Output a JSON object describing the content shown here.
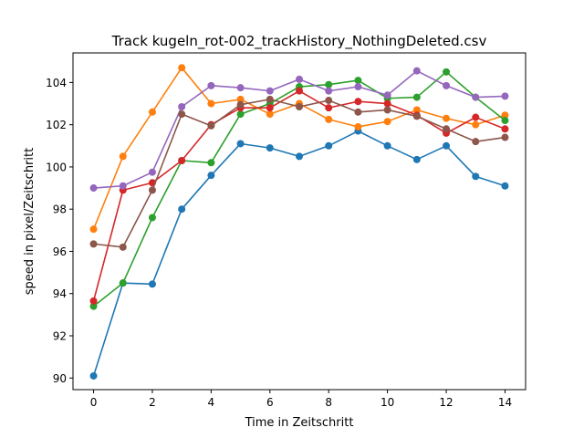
{
  "chart_data": {
    "type": "line",
    "title": "Track kugeln_rot-002_trackHistory_NothingDeleted.csv",
    "xlabel": "Time in Zeitschritt",
    "ylabel": "speed in pixel/Zeitschritt",
    "xlim": [
      -0.7,
      14.7
    ],
    "ylim": [
      89.45,
      105.4
    ],
    "xticks": [
      0,
      2,
      4,
      6,
      8,
      10,
      12,
      14
    ],
    "yticks": [
      90,
      92,
      94,
      96,
      98,
      100,
      102,
      104
    ],
    "grid": false,
    "legend": "none",
    "x": [
      0,
      1,
      2,
      3,
      4,
      5,
      6,
      7,
      8,
      9,
      10,
      11,
      12,
      13,
      14
    ],
    "series": [
      {
        "color": "#1f77b4",
        "values": [
          90.1,
          94.5,
          94.45,
          98.0,
          99.6,
          101.1,
          100.9,
          100.5,
          101.0,
          101.7,
          101.0,
          100.35,
          101.0,
          99.55,
          99.1
        ]
      },
      {
        "color": "#ff7f0e",
        "values": [
          97.05,
          100.5,
          102.6,
          104.7,
          103.0,
          103.2,
          102.5,
          103.0,
          102.25,
          101.9,
          102.15,
          102.7,
          102.3,
          102.0,
          102.45
        ]
      },
      {
        "color": "#2ca02c",
        "values": [
          93.4,
          94.5,
          97.6,
          100.3,
          100.2,
          102.5,
          103.0,
          103.8,
          103.9,
          104.1,
          103.25,
          103.3,
          104.5,
          103.3,
          102.2
        ]
      },
      {
        "color": "#d62728",
        "values": [
          93.65,
          98.9,
          99.25,
          100.3,
          102.0,
          102.8,
          102.8,
          103.6,
          102.8,
          103.1,
          103.0,
          102.45,
          101.6,
          102.35,
          101.8
        ]
      },
      {
        "color": "#9467bd",
        "values": [
          99.0,
          99.1,
          99.75,
          102.85,
          103.85,
          103.75,
          103.6,
          104.15,
          103.6,
          103.8,
          103.4,
          104.55,
          103.85,
          103.3,
          103.35
        ]
      },
      {
        "color": "#8c564b",
        "values": [
          96.35,
          96.2,
          98.9,
          102.5,
          101.95,
          102.95,
          103.2,
          102.85,
          103.15,
          102.6,
          102.7,
          102.4,
          101.8,
          101.2,
          101.4
        ]
      }
    ]
  }
}
